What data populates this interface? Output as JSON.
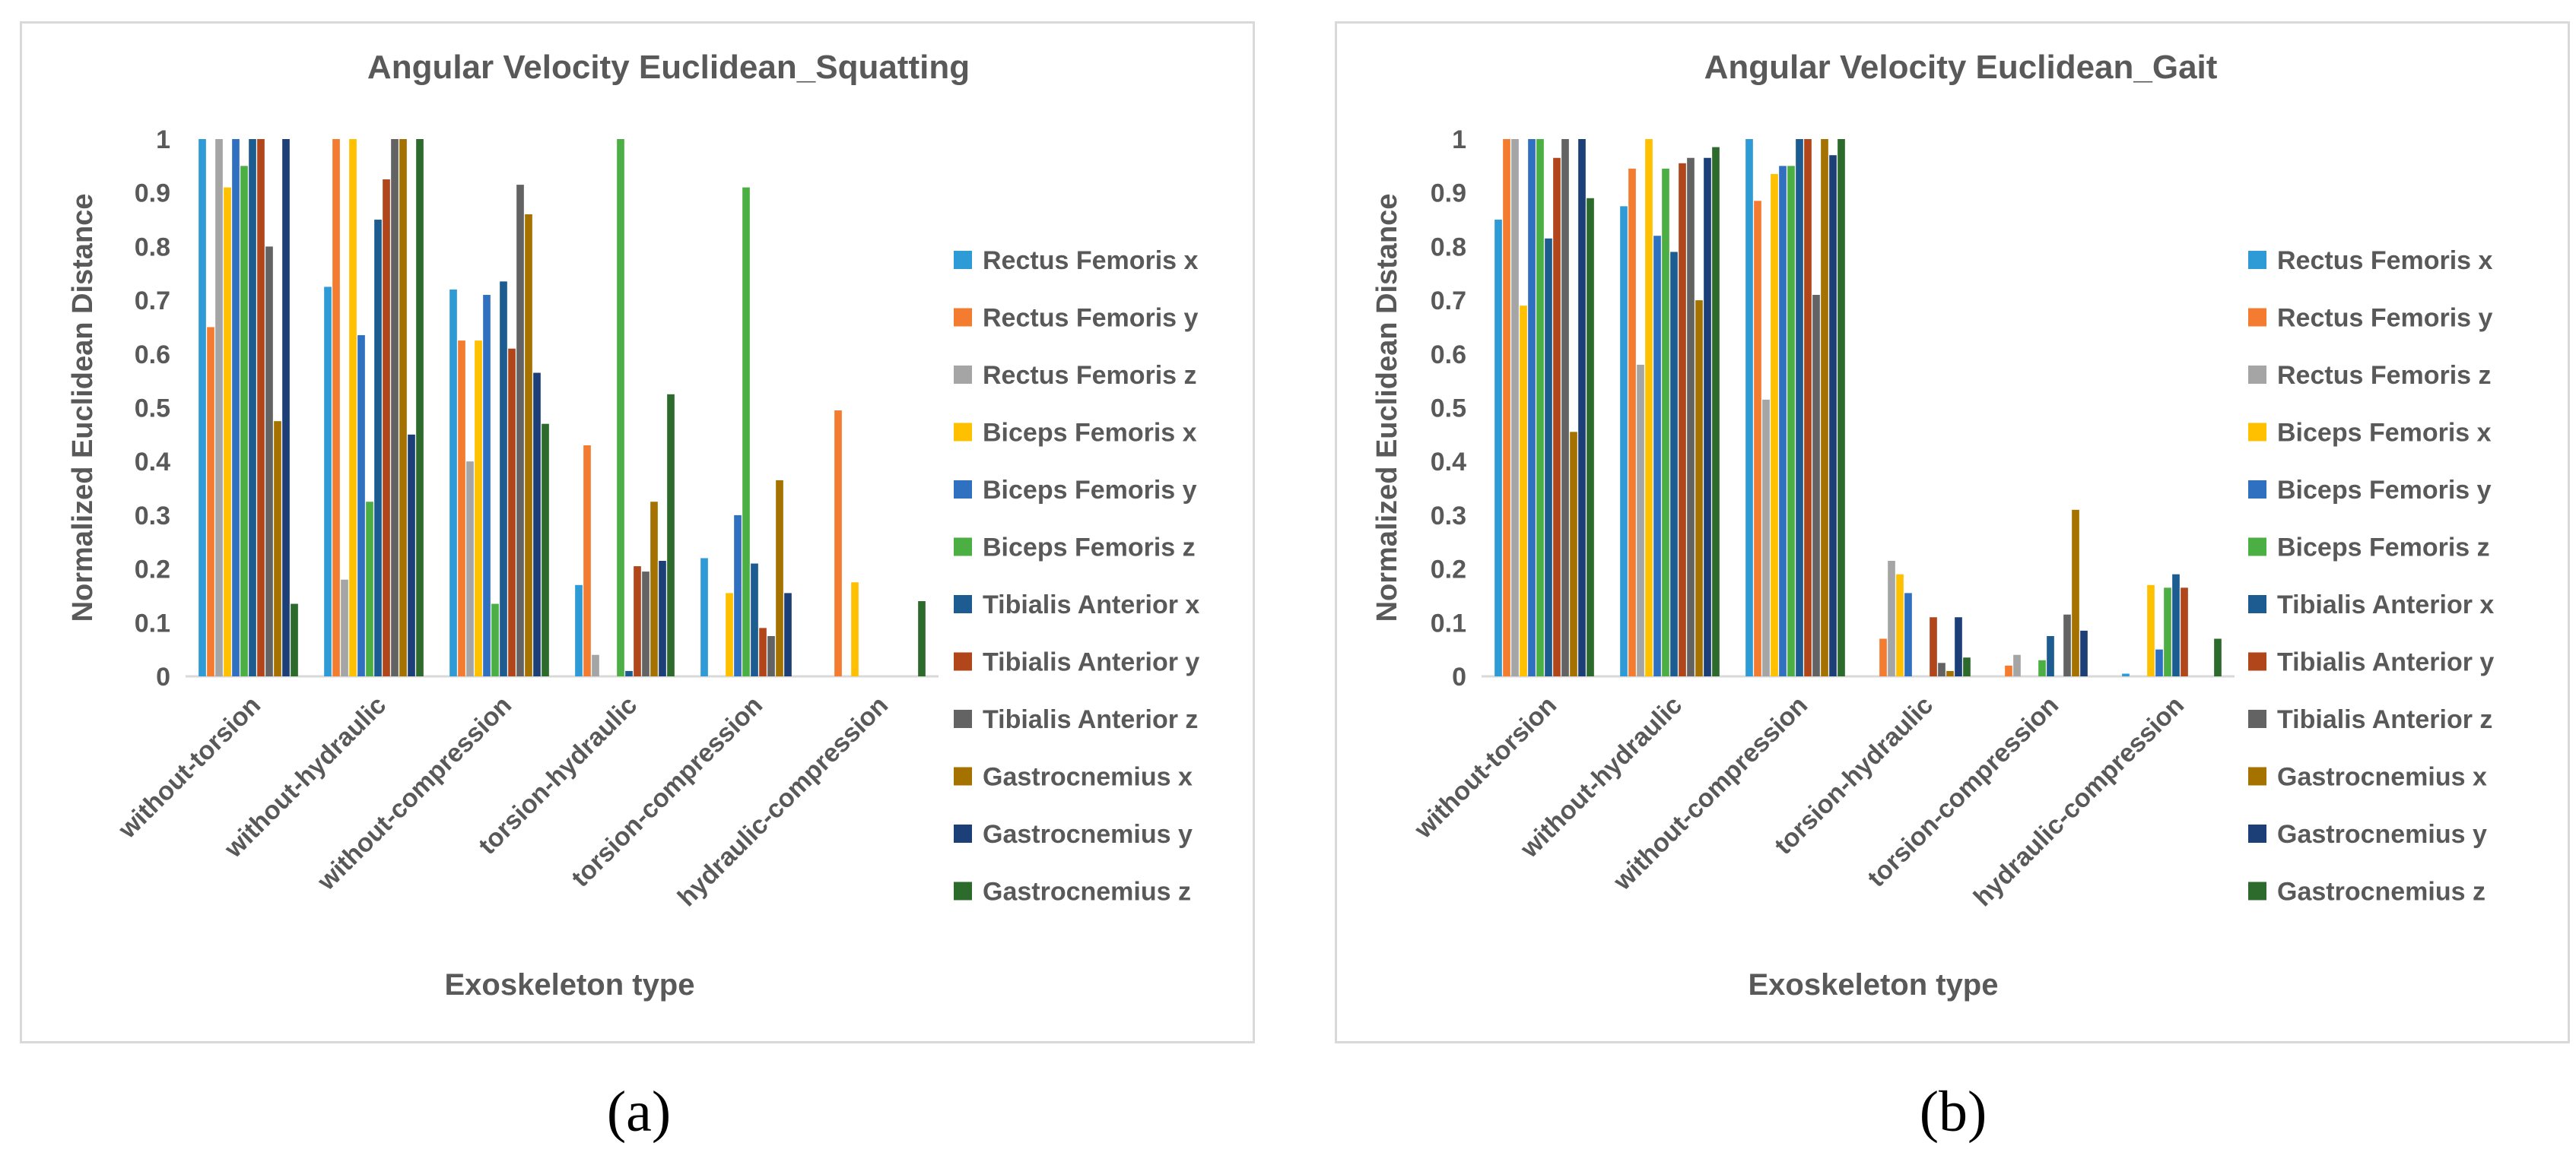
{
  "chart_data": [
    {
      "type": "bar",
      "title": "Angular Velocity  Euclidean_Squatting",
      "xlabel": "Exoskeleton type",
      "ylabel": "Normalized Euclidean Distance",
      "ylim": [
        0,
        1
      ],
      "yticks": [
        "0",
        "0.1",
        "0.2",
        "0.3",
        "0.4",
        "0.5",
        "0.6",
        "0.7",
        "0.8",
        "0.9",
        "1"
      ],
      "grid": false,
      "legend_position": "right",
      "categories": [
        "without-torsion",
        "without-hydraulic",
        "without-compression",
        "torsion-hydraulic",
        "torsion-compression",
        "hydraulic-compression"
      ],
      "series": [
        {
          "name": "Rectus Femoris  x",
          "color": "#2e9bd6",
          "values": [
            1.0,
            0.725,
            0.72,
            0.17,
            0.22,
            0.0
          ]
        },
        {
          "name": "Rectus Femoris  y",
          "color": "#f47c30",
          "values": [
            0.65,
            1.0,
            0.625,
            0.43,
            0.0,
            0.495
          ]
        },
        {
          "name": "Rectus Femoris  z",
          "color": "#a5a5a5",
          "values": [
            1.0,
            0.18,
            0.4,
            0.04,
            0.0,
            0.0
          ]
        },
        {
          "name": "Biceps Femoris x",
          "color": "#ffc000",
          "values": [
            0.91,
            1.0,
            0.625,
            0.0,
            0.155,
            0.175
          ]
        },
        {
          "name": "Biceps Femoris y",
          "color": "#3070c0",
          "values": [
            1.0,
            0.635,
            0.71,
            0.0,
            0.3,
            0.0
          ]
        },
        {
          "name": "Biceps Femoris z",
          "color": "#4caf43",
          "values": [
            0.95,
            0.325,
            0.135,
            1.0,
            0.91,
            0.0
          ]
        },
        {
          "name": "Tibialis Anterior x",
          "color": "#1d5c91",
          "values": [
            1.0,
            0.85,
            0.735,
            0.01,
            0.21,
            0.0
          ]
        },
        {
          "name": "Tibialis Anterior y",
          "color": "#b2461b",
          "values": [
            1.0,
            0.925,
            0.61,
            0.205,
            0.09,
            0.0
          ]
        },
        {
          "name": "Tibialis Anterior z",
          "color": "#636363",
          "values": [
            0.8,
            1.0,
            0.915,
            0.195,
            0.075,
            0.0
          ]
        },
        {
          "name": "Gastrocnemius x",
          "color": "#a57200",
          "values": [
            0.475,
            1.0,
            0.86,
            0.325,
            0.365,
            0.0
          ]
        },
        {
          "name": "Gastrocnemius y",
          "color": "#1d3f78",
          "values": [
            1.0,
            0.45,
            0.565,
            0.215,
            0.155,
            0.0
          ]
        },
        {
          "name": "Gastrocnemius z",
          "color": "#2c6b2b",
          "values": [
            0.135,
            1.0,
            0.47,
            0.525,
            0.0,
            0.14
          ]
        }
      ]
    },
    {
      "type": "bar",
      "title": "Angular Velocity  Euclidean_Gait",
      "xlabel": "Exoskeleton type",
      "ylabel": "Normalized Euclidean Distance",
      "ylim": [
        0,
        1
      ],
      "yticks": [
        "0",
        "0.1",
        "0.2",
        "0.3",
        "0.4",
        "0.5",
        "0.6",
        "0.7",
        "0.8",
        "0.9",
        "1"
      ],
      "grid": false,
      "legend_position": "right",
      "categories": [
        "without-torsion",
        "without-hydraulic",
        "without-compression",
        "torsion-hydraulic",
        "torsion-compression",
        "hydraulic-compression"
      ],
      "series": [
        {
          "name": "Rectus Femoris  x",
          "color": "#2e9bd6",
          "values": [
            0.85,
            0.875,
            1.0,
            0.0,
            0.0,
            0.005
          ]
        },
        {
          "name": "Rectus Femoris  y",
          "color": "#f47c30",
          "values": [
            1.0,
            0.945,
            0.885,
            0.07,
            0.02,
            0.0
          ]
        },
        {
          "name": "Rectus Femoris  z",
          "color": "#a5a5a5",
          "values": [
            1.0,
            0.58,
            0.515,
            0.215,
            0.04,
            0.0
          ]
        },
        {
          "name": "Biceps Femoris x",
          "color": "#ffc000",
          "values": [
            0.69,
            1.0,
            0.935,
            0.19,
            0.0,
            0.17
          ]
        },
        {
          "name": "Biceps Femoris y",
          "color": "#3070c0",
          "values": [
            1.0,
            0.82,
            0.95,
            0.155,
            0.0,
            0.05
          ]
        },
        {
          "name": "Biceps Femoris z",
          "color": "#4caf43",
          "values": [
            1.0,
            0.945,
            0.95,
            0.0,
            0.03,
            0.165
          ]
        },
        {
          "name": "Tibialis Anterior x",
          "color": "#1d5c91",
          "values": [
            0.815,
            0.79,
            1.0,
            0.0,
            0.075,
            0.19
          ]
        },
        {
          "name": "Tibialis Anterior y",
          "color": "#b2461b",
          "values": [
            0.965,
            0.955,
            1.0,
            0.11,
            0.0,
            0.165
          ]
        },
        {
          "name": "Tibialis Anterior z",
          "color": "#636363",
          "values": [
            1.0,
            0.965,
            0.71,
            0.025,
            0.115,
            0.0
          ]
        },
        {
          "name": "Gastrocnemius x",
          "color": "#a57200",
          "values": [
            0.455,
            0.7,
            1.0,
            0.01,
            0.31,
            0.0
          ]
        },
        {
          "name": "Gastrocnemius y",
          "color": "#1d3f78",
          "values": [
            1.0,
            0.965,
            0.97,
            0.11,
            0.085,
            0.0
          ]
        },
        {
          "name": "Gastrocnemius z",
          "color": "#2c6b2b",
          "values": [
            0.89,
            0.985,
            1.0,
            0.035,
            0.0,
            0.07
          ]
        }
      ]
    }
  ],
  "captions": [
    "(a)",
    "(b)"
  ]
}
